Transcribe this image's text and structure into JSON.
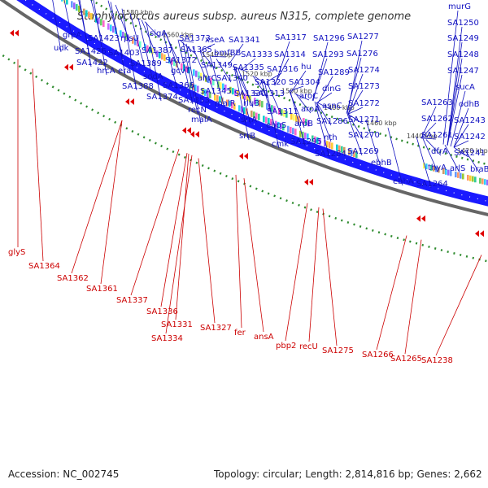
{
  "title": "Staphylococcus aureus subsp. aureus N315, complete genome",
  "footer": {
    "accession": "Accession: NC_002745",
    "topology": "Topology: circular; Length: 2,814,816 bp; Genes: 2,662"
  },
  "colors": {
    "gene_label": "#1010c0",
    "rna_label": "#cc0000",
    "gene_arrow": "#1a1aff",
    "backbone": "#666666",
    "dot_ring": "#2e8b2e"
  },
  "kbp_ticks": [
    "1640 kbp",
    "1620 kbp",
    "1600 kbp",
    "1580 kbp",
    "1560 kbp",
    "1540 kbp",
    "1520 kbp",
    "1500 kbp",
    "1480 kbp",
    "1460 kbp",
    "1440 kbp",
    "1420 kbp"
  ],
  "gene_labels": [
    "greA",
    "udk",
    "SA1423",
    "SA1426",
    "SA1422",
    "rpsU",
    "SA1403",
    "hrcA",
    "era",
    "sigA",
    "SA1387",
    "SA1389",
    "sodA",
    "SA1388",
    "SA1374",
    "SA1373",
    "SA1365",
    "gcvT",
    "SA1372",
    "SA1366",
    "ahrC",
    "SA1353",
    "recN",
    "xseA",
    "bmfBB",
    "SA1349",
    "SA1340",
    "SA1345",
    "malR",
    "malA",
    "SA1341",
    "SA1333",
    "SA1335",
    "SA1330",
    "rluB",
    "srrA",
    "srrB",
    "SA1317",
    "SA1314",
    "SA1316",
    "SA1320",
    "SA1313",
    "SA1311",
    "ebpS",
    "cmk",
    "hu",
    "SA1304",
    "aroC",
    "aroA",
    "aroB",
    "SA1295",
    "SA1296",
    "SA1293",
    "SA1289",
    "dinG",
    "asnC",
    "SA1286",
    "nth",
    "SA1284",
    "SA1277",
    "SA1276",
    "SA1274",
    "SA1273",
    "SA1272",
    "SA1271",
    "SA1270",
    "SA1269",
    "ebhB",
    "ebhA",
    "murG",
    "SA1250",
    "SA1249",
    "SA1248",
    "SA1247",
    "sucA",
    "odhB",
    "SA1263",
    "SA1262",
    "SA1243",
    "SA1261",
    "SA1242",
    "dfrA",
    "thyA",
    "SA1264",
    "SA1241",
    "arlS",
    "braB"
  ],
  "rna_labels": [
    "glyS",
    "SA1364",
    "SA1362",
    "SA1361",
    "SA1337",
    "SA1336",
    "SA1331",
    "SA1334",
    "SA1327",
    "fer",
    "ansA",
    "pbp2",
    "recU",
    "SA1275",
    "SA1266",
    "SA1265",
    "SA1238"
  ]
}
